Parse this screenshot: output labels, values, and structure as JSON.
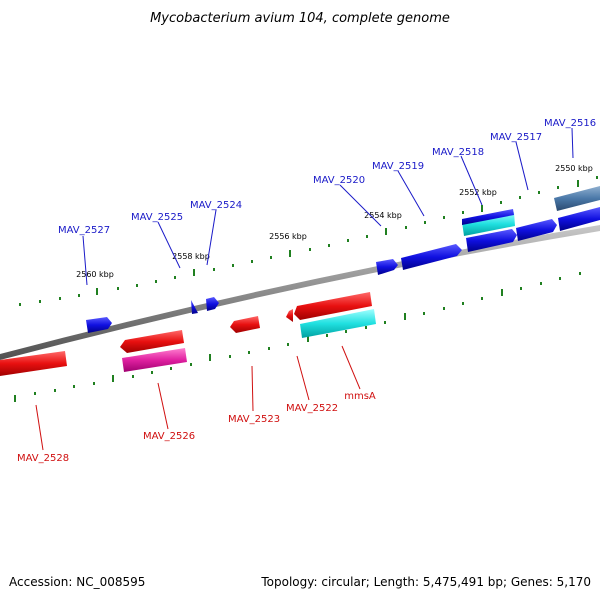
{
  "title": "Mycobacterium avium 104, complete genome",
  "footer": {
    "accession": "Accession: NC_008595",
    "topology": "Topology: circular; Length: 5,475,491 bp; Genes: 5,170"
  },
  "colors": {
    "backbone": "#8c8c8c",
    "forward_gene": "#1010e0",
    "reverse_gene": "#e81010",
    "forward_label": "#1a1ac8",
    "reverse_label": "#d01010",
    "cds_forward": "#20e0e0",
    "cds_reverse": "#e020a0",
    "ticks": "#208020",
    "other": "#4a78a8"
  },
  "kbp_labels": [
    "2550 kbp",
    "2552 kbp",
    "2554 kbp",
    "2556 kbp",
    "2558 kbp",
    "2560 kbp"
  ],
  "forward_genes": [
    "MAV_2516",
    "MAV_2517",
    "MAV_2518",
    "MAV_2519",
    "MAV_2520",
    "MAV_2524",
    "MAV_2525",
    "MAV_2527"
  ],
  "reverse_genes": [
    "mmsA",
    "MAV_2522",
    "MAV_2523",
    "MAV_2526",
    "MAV_2528"
  ]
}
